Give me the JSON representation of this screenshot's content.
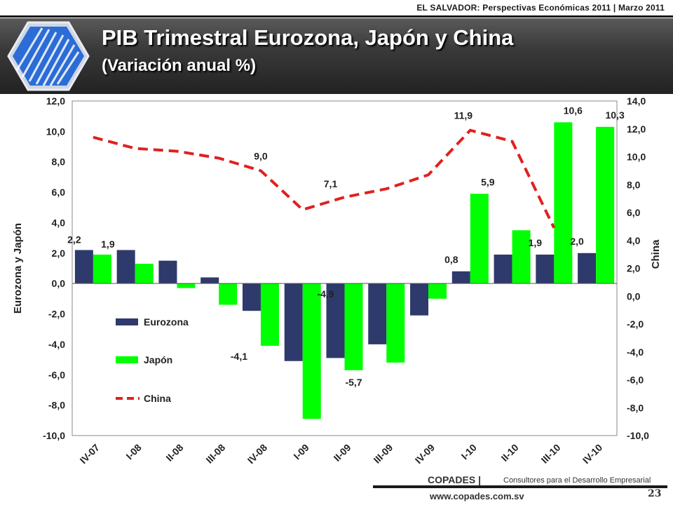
{
  "header": {
    "top_right": "EL SALVADOR: Perspectivas Económicas 2011 | Marzo 2011",
    "title": "PIB Trimestral Eurozona, Japón y China",
    "subtitle": "(Variación anual %)"
  },
  "footer": {
    "brand": "COPADES |",
    "tagline": "Consultores para el Desarrollo Empresarial",
    "page": "23",
    "website": "www.copades.com.sv"
  },
  "colors": {
    "eurozona": "#2e3a6b",
    "japon": "#00ff00",
    "china": "#e02020"
  },
  "chart_data": {
    "type": "bar",
    "categories": [
      "IV-07",
      "I-08",
      "II-08",
      "III-08",
      "IV-08",
      "I-09",
      "II-09",
      "III-09",
      "IV-09",
      "I-10",
      "II-10",
      "III-10",
      "IV-10"
    ],
    "series": [
      {
        "name": "Eurozona",
        "type": "bar",
        "axis": "left",
        "values": [
          2.2,
          2.2,
          1.5,
          0.4,
          -1.8,
          -5.1,
          -4.9,
          -4.0,
          -2.1,
          0.8,
          1.9,
          1.9,
          2.0
        ]
      },
      {
        "name": "Japón",
        "type": "bar",
        "axis": "left",
        "values": [
          1.9,
          1.3,
          -0.3,
          -1.4,
          -4.1,
          -8.9,
          -5.7,
          -5.2,
          -1.0,
          5.9,
          3.5,
          10.6,
          10.3
        ]
      },
      {
        "name": "China",
        "type": "line",
        "style": "dashed",
        "axis": "right",
        "values": [
          11.4,
          10.6,
          10.4,
          9.9,
          9.0,
          6.2,
          7.1,
          7.7,
          8.7,
          11.9,
          11.1,
          4.9,
          null
        ]
      }
    ],
    "data_labels": [
      {
        "series": "Eurozona",
        "index": 0,
        "text": "2,2"
      },
      {
        "series": "Japón",
        "index": 0,
        "text": "1,9"
      },
      {
        "series": "China",
        "index": 4,
        "text": "9,0"
      },
      {
        "series": "Japón",
        "index": 4,
        "text": "-4,1"
      },
      {
        "series": "Eurozona",
        "index": 6,
        "text": "-4,9"
      },
      {
        "series": "Japón",
        "index": 6,
        "text": "-5,7"
      },
      {
        "series": "China",
        "index": 6,
        "text": "7,1"
      },
      {
        "series": "Eurozona",
        "index": 9,
        "text": "0,8"
      },
      {
        "series": "Japón",
        "index": 9,
        "text": "5,9"
      },
      {
        "series": "China",
        "index": 9,
        "text": "11,9"
      },
      {
        "series": "Eurozona",
        "index": 11,
        "text": "1,9"
      },
      {
        "series": "Japón",
        "index": 11,
        "text": "10,6"
      },
      {
        "series": "Eurozona",
        "index": 12,
        "text": "2,0"
      },
      {
        "series": "Japón",
        "index": 12,
        "text": "10,3"
      }
    ],
    "ylabel_left": "Eurozona y Japón",
    "ylabel_right": "China",
    "ylim_left": [
      -10,
      12
    ],
    "ylim_right": [
      -10,
      14
    ],
    "yticks_left": [
      "-10,0",
      "-8,0",
      "-6,0",
      "-4,0",
      "-2,0",
      "0,0",
      "2,0",
      "4,0",
      "6,0",
      "8,0",
      "10,0",
      "12,0"
    ],
    "yticks_right": [
      "-10,0",
      "-8,0",
      "-6,0",
      "-4,0",
      "-2,0",
      "0,0",
      "2,0",
      "4,0",
      "6,0",
      "8,0",
      "10,0",
      "12,0",
      "14,0"
    ],
    "legend": {
      "placement": "inside-bottom-left",
      "entries": [
        "Eurozona",
        "Japón",
        "China"
      ]
    },
    "grid": false
  }
}
